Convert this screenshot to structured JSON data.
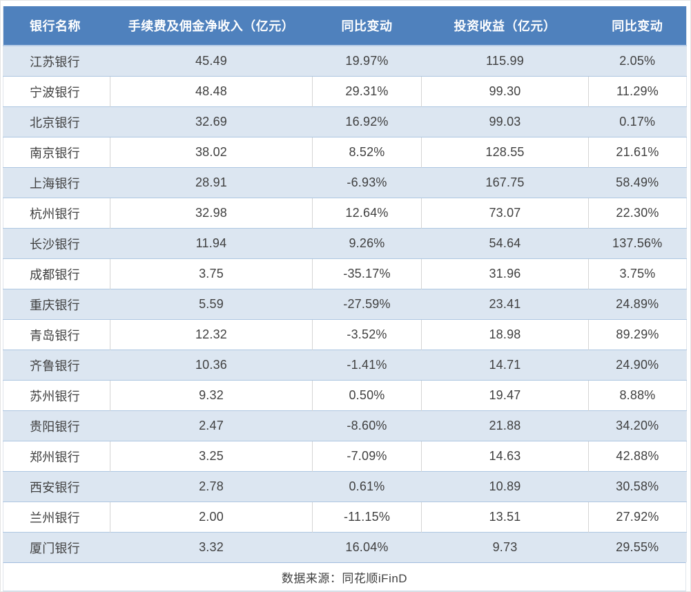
{
  "chart_data": {
    "type": "table",
    "columns": [
      "银行名称",
      "手续费及佣金净收入（亿元）",
      "同比变动",
      "投资收益（亿元）",
      "同比变动"
    ],
    "rows": [
      [
        "江苏银行",
        "45.49",
        "19.97%",
        "115.99",
        "2.05%"
      ],
      [
        "宁波银行",
        "48.48",
        "29.31%",
        "99.30",
        "11.29%"
      ],
      [
        "北京银行",
        "32.69",
        "16.92%",
        "99.03",
        "0.17%"
      ],
      [
        "南京银行",
        "38.02",
        "8.52%",
        "128.55",
        "21.61%"
      ],
      [
        "上海银行",
        "28.91",
        "-6.93%",
        "167.75",
        "58.49%"
      ],
      [
        "杭州银行",
        "32.98",
        "12.64%",
        "73.07",
        "22.30%"
      ],
      [
        "长沙银行",
        "11.94",
        "9.26%",
        "54.64",
        "137.56%"
      ],
      [
        "成都银行",
        "3.75",
        "-35.17%",
        "31.96",
        "3.75%"
      ],
      [
        "重庆银行",
        "5.59",
        "-27.59%",
        "23.41",
        "24.89%"
      ],
      [
        "青岛银行",
        "12.32",
        "-3.52%",
        "18.98",
        "89.29%"
      ],
      [
        "齐鲁银行",
        "10.36",
        "-1.41%",
        "14.71",
        "24.90%"
      ],
      [
        "苏州银行",
        "9.32",
        "0.50%",
        "19.47",
        "8.88%"
      ],
      [
        "贵阳银行",
        "2.47",
        "-8.60%",
        "21.88",
        "34.20%"
      ],
      [
        "郑州银行",
        "3.25",
        "-7.09%",
        "14.63",
        "42.88%"
      ],
      [
        "西安银行",
        "2.78",
        "0.61%",
        "10.89",
        "30.58%"
      ],
      [
        "兰州银行",
        "2.00",
        "-11.15%",
        "13.51",
        "27.92%"
      ],
      [
        "厦门银行",
        "3.32",
        "16.04%",
        "9.73",
        "29.55%"
      ]
    ],
    "source_note": "数据来源：同花顺iFinD",
    "layout": {
      "stripe": "odd-rows-light-blue",
      "grid": "horizontal-all-rows, vertical-on-white-rows"
    }
  },
  "colors": {
    "header_bg": "#4f81bd",
    "header_text": "#ffffff",
    "stripe_bg": "#dce6f1",
    "row_bg": "#ffffff",
    "h_border": "#adc6e1",
    "v_border": "#d4d4d4",
    "body_text": "#3f3f3f"
  }
}
